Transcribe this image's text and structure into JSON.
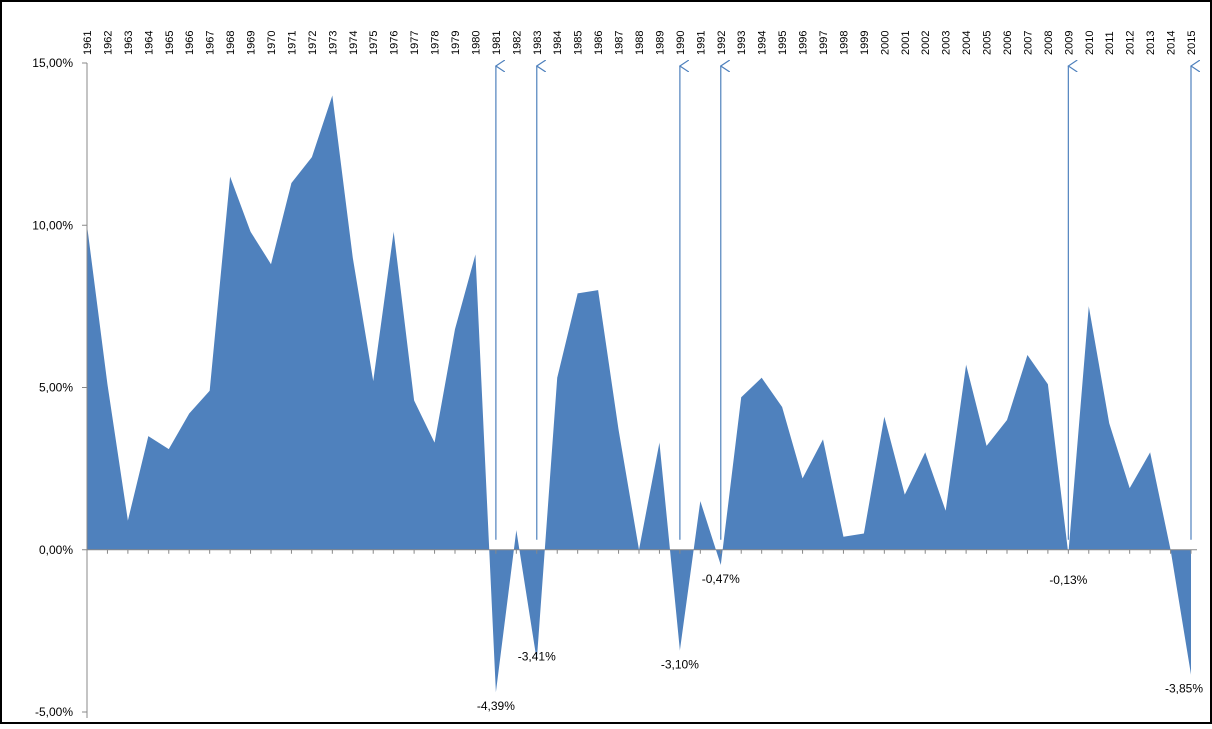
{
  "chart_data": {
    "type": "area",
    "title": "",
    "xlabel": "",
    "ylabel": "",
    "x_axis_position": "top",
    "ylim": [
      -5,
      15
    ],
    "grid": false,
    "legend": "none",
    "fill_color": "#4f81bd",
    "y_ticks": [
      -5,
      0,
      5,
      10,
      15
    ],
    "y_tick_labels": [
      "-5,00%",
      "0,00%",
      "5,00%",
      "10,00%",
      "15,00%"
    ],
    "categories": [
      "1961",
      "1962",
      "1963",
      "1964",
      "1965",
      "1966",
      "1967",
      "1968",
      "1969",
      "1970",
      "1971",
      "1972",
      "1973",
      "1974",
      "1975",
      "1976",
      "1977",
      "1978",
      "1979",
      "1980",
      "1981",
      "1982",
      "1983",
      "1984",
      "1985",
      "1986",
      "1987",
      "1988",
      "1989",
      "1990",
      "1991",
      "1992",
      "1993",
      "1994",
      "1995",
      "1996",
      "1997",
      "1998",
      "1999",
      "2000",
      "2001",
      "2002",
      "2003",
      "2004",
      "2005",
      "2006",
      "2007",
      "2008",
      "2009",
      "2010",
      "2011",
      "2012",
      "2013",
      "2014",
      "2015"
    ],
    "values": [
      10.0,
      5.1,
      0.9,
      3.5,
      3.1,
      4.2,
      4.9,
      11.5,
      9.8,
      8.8,
      11.3,
      12.1,
      14.0,
      9.0,
      5.2,
      9.8,
      4.6,
      3.3,
      6.8,
      9.1,
      -4.39,
      0.6,
      -3.41,
      5.3,
      7.9,
      8.0,
      3.7,
      0.0,
      3.3,
      -3.1,
      1.5,
      -0.47,
      4.7,
      5.3,
      4.4,
      2.2,
      3.4,
      0.4,
      0.5,
      4.1,
      1.7,
      3.0,
      1.2,
      5.7,
      3.2,
      4.0,
      6.0,
      5.1,
      -0.13,
      7.5,
      3.9,
      1.9,
      3.0,
      0.0,
      -3.85
    ],
    "annotations": [
      {
        "year": "1981",
        "label": "-4,39%"
      },
      {
        "year": "1983",
        "label": "-3,41%"
      },
      {
        "year": "1990",
        "label": "-3,10%"
      },
      {
        "year": "1992",
        "label": "-0,47%"
      },
      {
        "year": "2009",
        "label": "-0,13%"
      },
      {
        "year": "2015",
        "label": "-3,85%"
      }
    ]
  }
}
